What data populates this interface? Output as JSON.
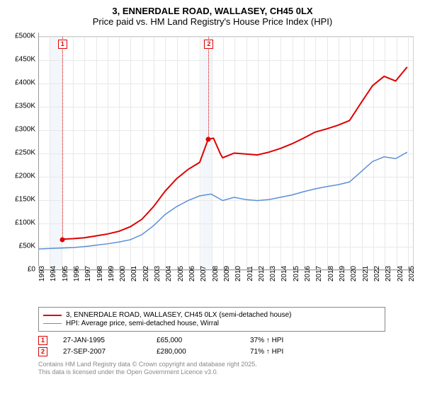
{
  "title": {
    "line1": "3, ENNERDALE ROAD, WALLASEY, CH45 0LX",
    "line2": "Price paid vs. HM Land Registry's House Price Index (HPI)"
  },
  "chart": {
    "type": "line",
    "background_color": "#ffffff",
    "grid_color": "#e8e8e8",
    "shade_color": "#f3f6fb",
    "ylim": [
      0,
      500000
    ],
    "ytick_step": 50000,
    "yticks": [
      "£0",
      "£50K",
      "£100K",
      "£150K",
      "£200K",
      "£250K",
      "£300K",
      "£350K",
      "£400K",
      "£450K",
      "£500K"
    ],
    "xlim": [
      1993,
      2025.5
    ],
    "xticks": [
      1993,
      1994,
      1995,
      1996,
      1997,
      1998,
      1999,
      2000,
      2001,
      2002,
      2003,
      2004,
      2005,
      2006,
      2007,
      2008,
      2009,
      2010,
      2011,
      2012,
      2013,
      2014,
      2015,
      2016,
      2017,
      2018,
      2019,
      2020,
      2021,
      2022,
      2023,
      2024,
      2025
    ],
    "shade_bands": [
      [
        1994,
        1995
      ],
      [
        2007.1,
        2008
      ]
    ],
    "series": [
      {
        "label": "3, ENNERDALE ROAD, WALLASEY, CH45 0LX (semi-detached house)",
        "color": "#dd0000",
        "width": 2,
        "points": [
          [
            1995.07,
            65000
          ],
          [
            1996,
            66000
          ],
          [
            1997,
            68000
          ],
          [
            1998,
            72000
          ],
          [
            1999,
            76000
          ],
          [
            2000,
            82000
          ],
          [
            2001,
            92000
          ],
          [
            2002,
            108000
          ],
          [
            2003,
            135000
          ],
          [
            2004,
            168000
          ],
          [
            2005,
            195000
          ],
          [
            2006,
            215000
          ],
          [
            2007,
            230000
          ],
          [
            2007.74,
            280000
          ],
          [
            2008.2,
            282000
          ],
          [
            2008.8,
            248000
          ],
          [
            2009,
            240000
          ],
          [
            2010,
            250000
          ],
          [
            2011,
            248000
          ],
          [
            2012,
            246000
          ],
          [
            2013,
            252000
          ],
          [
            2014,
            260000
          ],
          [
            2015,
            270000
          ],
          [
            2016,
            282000
          ],
          [
            2017,
            295000
          ],
          [
            2018,
            302000
          ],
          [
            2019,
            310000
          ],
          [
            2020,
            320000
          ],
          [
            2021,
            358000
          ],
          [
            2022,
            395000
          ],
          [
            2023,
            415000
          ],
          [
            2024,
            405000
          ],
          [
            2025,
            435000
          ]
        ]
      },
      {
        "label": "HPI: Average price, semi-detached house, Wirral",
        "color": "#5b8fd6",
        "width": 1.5,
        "points": [
          [
            1993,
            44000
          ],
          [
            1994,
            45000
          ],
          [
            1995,
            46000
          ],
          [
            1996,
            47000
          ],
          [
            1997,
            49000
          ],
          [
            1998,
            52000
          ],
          [
            1999,
            55000
          ],
          [
            2000,
            59000
          ],
          [
            2001,
            64000
          ],
          [
            2002,
            75000
          ],
          [
            2003,
            94000
          ],
          [
            2004,
            118000
          ],
          [
            2005,
            135000
          ],
          [
            2006,
            148000
          ],
          [
            2007,
            158000
          ],
          [
            2008,
            162000
          ],
          [
            2009,
            148000
          ],
          [
            2010,
            155000
          ],
          [
            2011,
            150000
          ],
          [
            2012,
            148000
          ],
          [
            2013,
            150000
          ],
          [
            2014,
            155000
          ],
          [
            2015,
            160000
          ],
          [
            2016,
            167000
          ],
          [
            2017,
            173000
          ],
          [
            2018,
            178000
          ],
          [
            2019,
            182000
          ],
          [
            2020,
            188000
          ],
          [
            2021,
            210000
          ],
          [
            2022,
            232000
          ],
          [
            2023,
            242000
          ],
          [
            2024,
            238000
          ],
          [
            2025,
            252000
          ]
        ]
      }
    ],
    "markers": [
      {
        "n": "1",
        "x": 1995.07,
        "y": 65000,
        "date": "27-JAN-1995",
        "price": "£65,000",
        "hpi": "37% ↑ HPI"
      },
      {
        "n": "2",
        "x": 2007.74,
        "y": 280000,
        "date": "27-SEP-2007",
        "price": "£280,000",
        "hpi": "71% ↑ HPI"
      }
    ]
  },
  "footer": {
    "line1": "Contains HM Land Registry data © Crown copyright and database right 2025.",
    "line2": "This data is licensed under the Open Government Licence v3.0."
  }
}
